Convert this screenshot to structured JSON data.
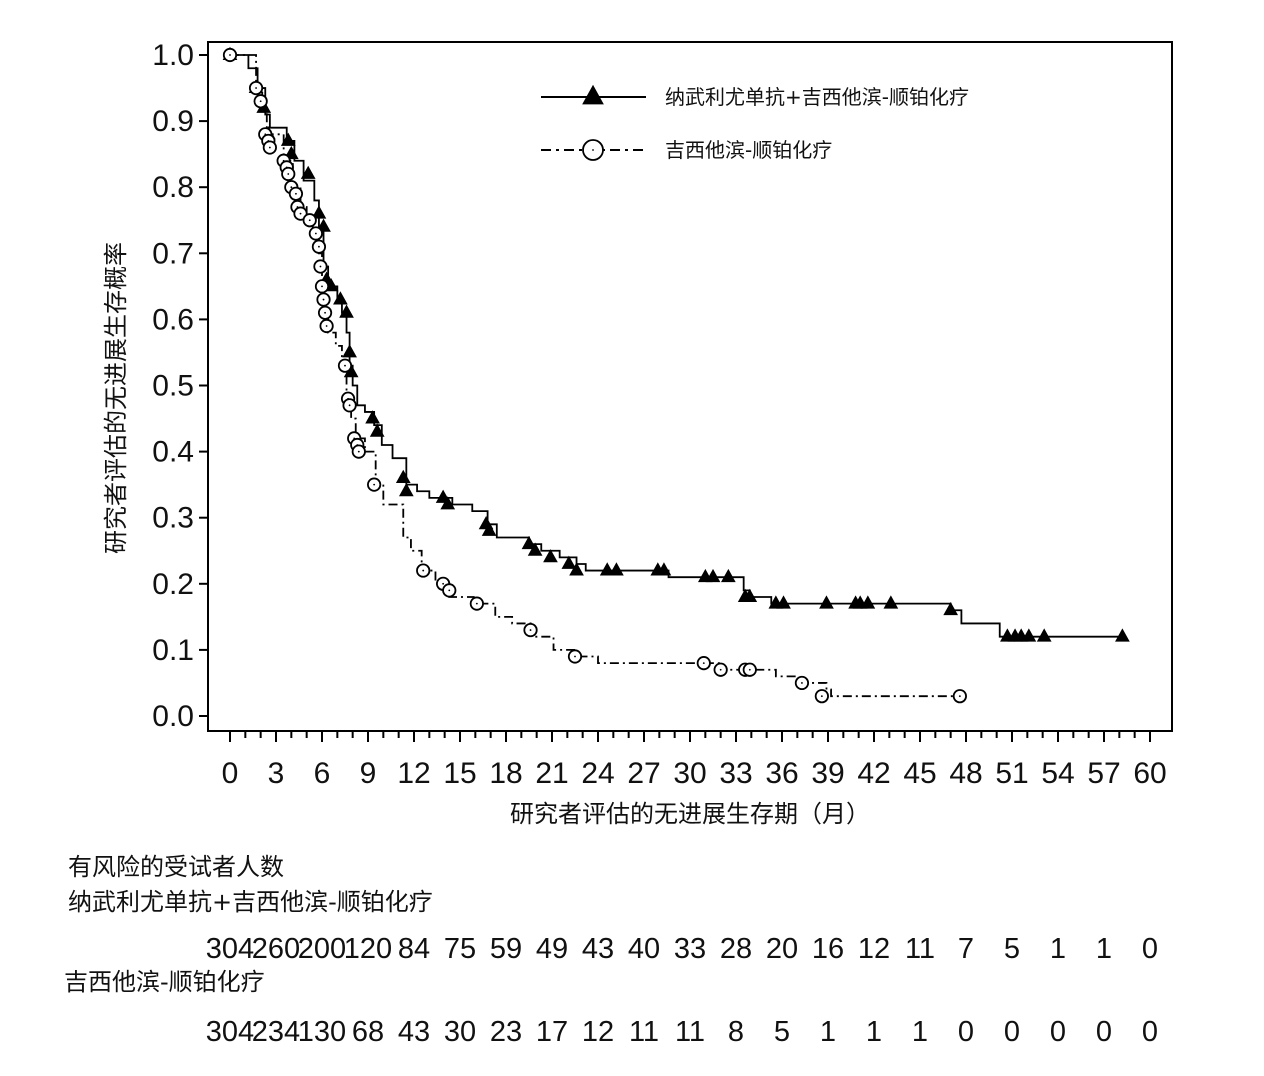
{
  "chart_data": {
    "type": "line",
    "title": "",
    "xlabel": "研究者评估的无进展生存期（月）",
    "ylabel": "研究者评估的无进展生存概率",
    "xlim": [
      0,
      60
    ],
    "ylim": [
      0,
      1.0
    ],
    "x_ticks": [
      "0",
      "3",
      "6",
      "9",
      "12",
      "15",
      "18",
      "21",
      "24",
      "27",
      "30",
      "33",
      "36",
      "39",
      "42",
      "45",
      "48",
      "51",
      "54",
      "57",
      "60"
    ],
    "y_ticks": [
      "0.0",
      "0.1",
      "0.2",
      "0.3",
      "0.4",
      "0.5",
      "0.6",
      "0.7",
      "0.8",
      "0.9",
      "1.0"
    ],
    "grid": false,
    "legend_position": "top-right",
    "series": [
      {
        "name": "纳武利尤单抗+吉西他滨-顺铂化疗",
        "line_style": "solid",
        "marker": "filled-triangle",
        "color": "#000000",
        "steps": [
          [
            0,
            1.0
          ],
          [
            1.2,
            0.98
          ],
          [
            1.8,
            0.95
          ],
          [
            2.3,
            0.91
          ],
          [
            2.6,
            0.89
          ],
          [
            3.7,
            0.87
          ],
          [
            4.2,
            0.84
          ],
          [
            4.8,
            0.81
          ],
          [
            5.5,
            0.78
          ],
          [
            5.8,
            0.74
          ],
          [
            6.1,
            0.68
          ],
          [
            6.4,
            0.65
          ],
          [
            7.0,
            0.63
          ],
          [
            7.3,
            0.61
          ],
          [
            7.6,
            0.58
          ],
          [
            7.8,
            0.53
          ],
          [
            8.0,
            0.5
          ],
          [
            8.3,
            0.47
          ],
          [
            8.8,
            0.46
          ],
          [
            9.4,
            0.44
          ],
          [
            9.9,
            0.41
          ],
          [
            10.6,
            0.39
          ],
          [
            11.5,
            0.35
          ],
          [
            12.2,
            0.34
          ],
          [
            13.0,
            0.33
          ],
          [
            14.5,
            0.32
          ],
          [
            15.8,
            0.31
          ],
          [
            16.8,
            0.29
          ],
          [
            17.4,
            0.27
          ],
          [
            19.5,
            0.26
          ],
          [
            20.3,
            0.25
          ],
          [
            21.5,
            0.24
          ],
          [
            22.6,
            0.23
          ],
          [
            23.2,
            0.22
          ],
          [
            28.6,
            0.21
          ],
          [
            33.5,
            0.19
          ],
          [
            33.9,
            0.18
          ],
          [
            35.3,
            0.17
          ],
          [
            47.0,
            0.16
          ],
          [
            47.7,
            0.14
          ],
          [
            50.2,
            0.12
          ],
          [
            58.2,
            0.12
          ]
        ],
        "censored": [
          [
            0,
            1.0
          ],
          [
            1.7,
            0.95
          ],
          [
            2.2,
            0.92
          ],
          [
            2.5,
            0.88
          ],
          [
            3.8,
            0.87
          ],
          [
            4.0,
            0.85
          ],
          [
            5.1,
            0.82
          ],
          [
            5.8,
            0.76
          ],
          [
            6.1,
            0.74
          ],
          [
            6.3,
            0.66
          ],
          [
            6.6,
            0.65
          ],
          [
            7.2,
            0.63
          ],
          [
            7.6,
            0.61
          ],
          [
            7.8,
            0.55
          ],
          [
            7.9,
            0.52
          ],
          [
            9.3,
            0.45
          ],
          [
            9.6,
            0.43
          ],
          [
            11.3,
            0.36
          ],
          [
            11.5,
            0.34
          ],
          [
            13.9,
            0.33
          ],
          [
            14.2,
            0.32
          ],
          [
            16.7,
            0.29
          ],
          [
            16.9,
            0.28
          ],
          [
            19.5,
            0.26
          ],
          [
            19.9,
            0.25
          ],
          [
            20.9,
            0.24
          ],
          [
            22.1,
            0.23
          ],
          [
            22.6,
            0.22
          ],
          [
            24.6,
            0.22
          ],
          [
            25.2,
            0.22
          ],
          [
            27.9,
            0.22
          ],
          [
            28.3,
            0.22
          ],
          [
            31.0,
            0.21
          ],
          [
            31.5,
            0.21
          ],
          [
            32.5,
            0.21
          ],
          [
            33.6,
            0.18
          ],
          [
            33.9,
            0.18
          ],
          [
            35.6,
            0.17
          ],
          [
            36.1,
            0.17
          ],
          [
            38.9,
            0.17
          ],
          [
            40.8,
            0.17
          ],
          [
            41.1,
            0.17
          ],
          [
            41.6,
            0.17
          ],
          [
            43.1,
            0.17
          ],
          [
            47.0,
            0.16
          ],
          [
            50.7,
            0.12
          ],
          [
            51.2,
            0.12
          ],
          [
            51.6,
            0.12
          ],
          [
            52.1,
            0.12
          ],
          [
            53.1,
            0.12
          ],
          [
            58.2,
            0.12
          ]
        ]
      },
      {
        "name": "吉西他滨-顺铂化疗",
        "line_style": "dash-dot",
        "marker": "open-circle",
        "color": "#000000",
        "steps": [
          [
            0,
            1.0
          ],
          [
            1.7,
            0.95
          ],
          [
            2.1,
            0.92
          ],
          [
            2.4,
            0.88
          ],
          [
            3.5,
            0.84
          ],
          [
            4.1,
            0.8
          ],
          [
            4.6,
            0.77
          ],
          [
            5.0,
            0.75
          ],
          [
            5.4,
            0.73
          ],
          [
            5.8,
            0.7
          ],
          [
            6.0,
            0.66
          ],
          [
            6.2,
            0.61
          ],
          [
            6.4,
            0.58
          ],
          [
            6.9,
            0.56
          ],
          [
            7.3,
            0.53
          ],
          [
            7.6,
            0.48
          ],
          [
            7.9,
            0.45
          ],
          [
            8.2,
            0.42
          ],
          [
            8.8,
            0.4
          ],
          [
            9.5,
            0.35
          ],
          [
            10.0,
            0.32
          ],
          [
            11.3,
            0.27
          ],
          [
            11.8,
            0.25
          ],
          [
            12.5,
            0.22
          ],
          [
            13.4,
            0.2
          ],
          [
            14.3,
            0.18
          ],
          [
            15.9,
            0.17
          ],
          [
            17.3,
            0.15
          ],
          [
            18.4,
            0.14
          ],
          [
            19.7,
            0.12
          ],
          [
            21.1,
            0.1
          ],
          [
            22.7,
            0.09
          ],
          [
            24.0,
            0.08
          ],
          [
            32.1,
            0.07
          ],
          [
            35.6,
            0.06
          ],
          [
            37.1,
            0.05
          ],
          [
            38.9,
            0.04
          ],
          [
            39.2,
            0.03
          ],
          [
            47.6,
            0.03
          ]
        ],
        "censored": [
          [
            0,
            1.0
          ],
          [
            1.7,
            0.95
          ],
          [
            2.0,
            0.93
          ],
          [
            2.3,
            0.88
          ],
          [
            2.5,
            0.87
          ],
          [
            2.6,
            0.86
          ],
          [
            3.5,
            0.84
          ],
          [
            3.7,
            0.83
          ],
          [
            3.8,
            0.82
          ],
          [
            4.0,
            0.8
          ],
          [
            4.3,
            0.79
          ],
          [
            4.4,
            0.77
          ],
          [
            4.6,
            0.76
          ],
          [
            5.2,
            0.75
          ],
          [
            5.6,
            0.73
          ],
          [
            5.8,
            0.71
          ],
          [
            5.9,
            0.68
          ],
          [
            6.0,
            0.65
          ],
          [
            6.1,
            0.63
          ],
          [
            6.2,
            0.61
          ],
          [
            6.3,
            0.59
          ],
          [
            7.5,
            0.53
          ],
          [
            7.7,
            0.48
          ],
          [
            7.8,
            0.47
          ],
          [
            8.1,
            0.42
          ],
          [
            8.3,
            0.41
          ],
          [
            8.4,
            0.4
          ],
          [
            9.4,
            0.35
          ],
          [
            12.6,
            0.22
          ],
          [
            13.9,
            0.2
          ],
          [
            14.3,
            0.19
          ],
          [
            16.1,
            0.17
          ],
          [
            19.6,
            0.13
          ],
          [
            22.5,
            0.09
          ],
          [
            30.9,
            0.08
          ],
          [
            32.0,
            0.07
          ],
          [
            33.6,
            0.07
          ],
          [
            33.9,
            0.07
          ],
          [
            37.3,
            0.05
          ],
          [
            38.6,
            0.03
          ],
          [
            47.6,
            0.03
          ]
        ]
      }
    ]
  },
  "risk_table": {
    "title": "有风险的受试者人数",
    "times": [
      0,
      3,
      6,
      9,
      12,
      15,
      18,
      21,
      24,
      27,
      30,
      33,
      36,
      39,
      42,
      45,
      48,
      51,
      54,
      57,
      60
    ],
    "rows": [
      {
        "name": "纳武利尤单抗+吉西他滨-顺铂化疗",
        "counts": [
          "304",
          "260",
          "200",
          "120",
          "84",
          "75",
          "59",
          "49",
          "43",
          "40",
          "33",
          "28",
          "20",
          "16",
          "12",
          "11",
          "7",
          "5",
          "1",
          "1",
          "0"
        ]
      },
      {
        "name": "吉西他滨-顺铂化疗",
        "counts": [
          "304",
          "234",
          "130",
          "68",
          "43",
          "30",
          "23",
          "17",
          "12",
          "11",
          "11",
          "8",
          "5",
          "1",
          "1",
          "1",
          "0",
          "0",
          "0",
          "0",
          "0"
        ]
      }
    ]
  }
}
